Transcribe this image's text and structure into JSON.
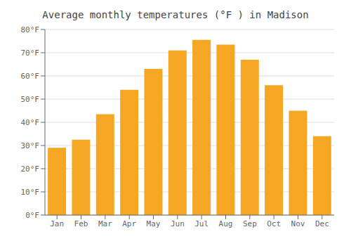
{
  "chart_data": {
    "type": "bar",
    "title": "Average monthly temperatures (°F ) in Madison",
    "categories": [
      "Jan",
      "Feb",
      "Mar",
      "Apr",
      "May",
      "Jun",
      "Jul",
      "Aug",
      "Sep",
      "Oct",
      "Nov",
      "Dec"
    ],
    "values": [
      29,
      32.5,
      43.5,
      54,
      63,
      71,
      75.5,
      73.5,
      67,
      56,
      45,
      34
    ],
    "color": "#F5A623",
    "ylim": [
      0,
      80
    ],
    "yticks": [
      {
        "value": 0,
        "label": "0°F"
      },
      {
        "value": 10,
        "label": "10°F"
      },
      {
        "value": 20,
        "label": "20°F"
      },
      {
        "value": 30,
        "label": "30°F"
      },
      {
        "value": 40,
        "label": "40°F"
      },
      {
        "value": 50,
        "label": "50°F"
      },
      {
        "value": 60,
        "label": "60°F"
      },
      {
        "value": 70,
        "label": "70°F"
      },
      {
        "value": 80,
        "label": "80°F"
      }
    ],
    "grid": true
  }
}
